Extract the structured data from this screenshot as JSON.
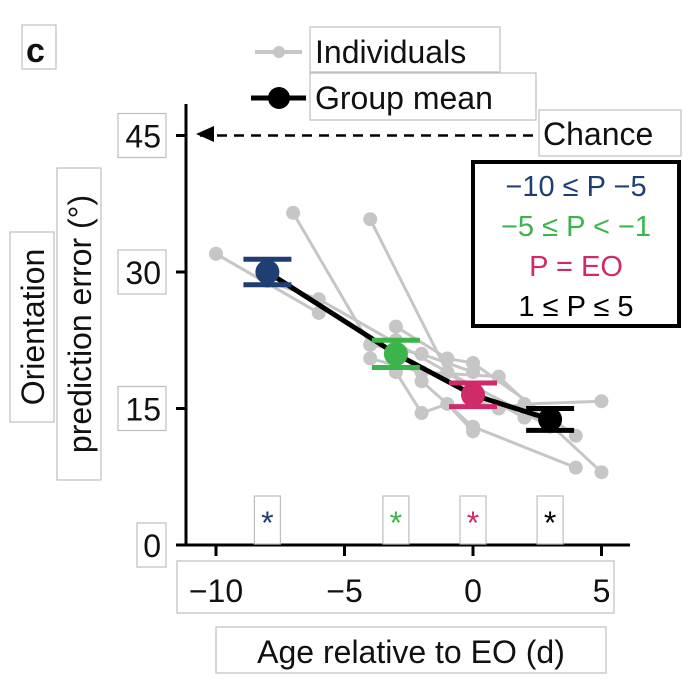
{
  "chart_data": {
    "type": "line",
    "panel_label": "c",
    "xlabel": "Age relative to EO (d)",
    "ylabel_lines": [
      "Orientation",
      "prediction error (°)"
    ],
    "xlim": [
      -11.5,
      6
    ],
    "ylim": [
      0,
      48
    ],
    "xticks": [
      -10,
      -5,
      0,
      5
    ],
    "xtick_labels": [
      "−10",
      "−5",
      "0",
      "5"
    ],
    "yticks": [
      0,
      15,
      30,
      45
    ],
    "ytick_labels": [
      "0",
      "15",
      "30",
      "45"
    ],
    "chance": {
      "label": "Chance",
      "value": 45
    },
    "legend": {
      "individuals": "Individuals",
      "group_mean": "Group mean"
    },
    "group_legend": [
      {
        "text": "−10 ≤ P −5",
        "color": "#1f3f73"
      },
      {
        "text": "−5 ≤ P < −1",
        "color": "#3bb54a"
      },
      {
        "text": "P = EO",
        "color": "#d02a6a"
      },
      {
        "text": "1 ≤ P ≤ 5",
        "color": "#000000"
      }
    ],
    "series": [
      {
        "name": "Group mean",
        "x": [
          -8,
          -3,
          0,
          3
        ],
        "y": [
          30,
          21,
          16.5,
          13.8
        ],
        "err": [
          1.4,
          1.5,
          1.3,
          1.2
        ],
        "colors": [
          "#1f3f73",
          "#3bb54a",
          "#d02a6a",
          "#000000"
        ]
      }
    ],
    "individuals": [
      {
        "x": [
          -10,
          -6
        ],
        "y": [
          32,
          25.5
        ]
      },
      {
        "x": [
          -7,
          -4
        ],
        "y": [
          36.5,
          22
        ]
      },
      {
        "x": [
          -8,
          -6,
          -1,
          3
        ],
        "y": [
          29,
          27,
          19,
          13
        ]
      },
      {
        "x": [
          -4,
          -2,
          0
        ],
        "y": [
          22,
          21,
          19
        ]
      },
      {
        "x": [
          -4,
          -1,
          0,
          2
        ],
        "y": [
          35.8,
          19,
          17,
          14
        ]
      },
      {
        "x": [
          -3,
          -1,
          0,
          4
        ],
        "y": [
          24,
          20.5,
          20,
          12
        ]
      },
      {
        "x": [
          -4,
          -2,
          1,
          5
        ],
        "y": [
          20.5,
          19,
          18.5,
          8
        ]
      },
      {
        "x": [
          -3,
          -2,
          0,
          4
        ],
        "y": [
          22.5,
          18,
          13,
          8.5
        ]
      },
      {
        "x": [
          -3,
          -2,
          -1,
          0
        ],
        "y": [
          19,
          14.5,
          15.5,
          12.5
        ]
      },
      {
        "x": [
          0,
          1,
          2,
          5
        ],
        "y": [
          16,
          15,
          15.5,
          15.8
        ]
      }
    ],
    "significance": {
      "symbol": "*",
      "x": [
        -8,
        -3,
        0,
        3
      ],
      "colors": [
        "#1f3f73",
        "#3bb54a",
        "#d02a6a",
        "#000000"
      ]
    }
  }
}
